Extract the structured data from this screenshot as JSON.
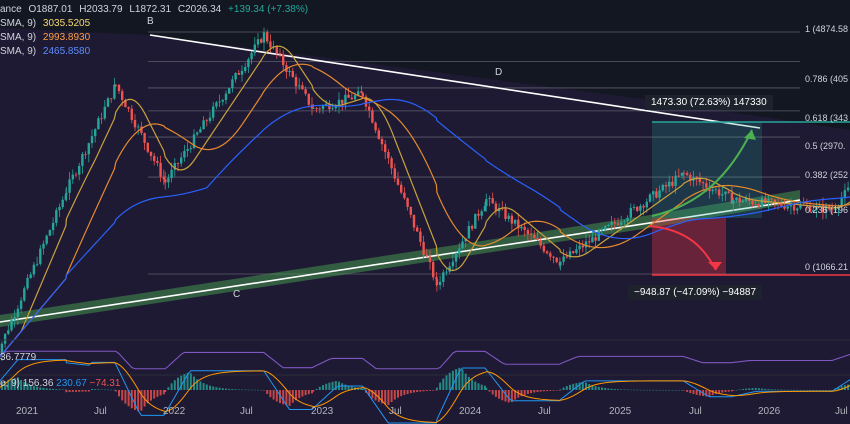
{
  "header": {
    "symbol_fragment": "ance",
    "ohlc": [
      "O1887.01",
      "H2033.79",
      "L1872.31",
      "C2026.34"
    ],
    "change": "+139.34 (+7.38%)",
    "ma1_label": "SMA, 9)",
    "ma1_value": "3035.5205",
    "ma2_label": "SMA, 9)",
    "ma2_value": "2993.8930",
    "ma3_label": "SMA, 9)",
    "ma3_value": "2465.8580"
  },
  "colors": {
    "bg": "#131722",
    "up": "#26a69a",
    "down": "#ef5350",
    "ma_fast": "#c9a23c",
    "ma_mid": "#e68a2e",
    "ma_slow": "#2962ff",
    "trend": "#ffffff",
    "support_band": "#4caf50",
    "target_up": "#4caf50",
    "target_down": "#f23645"
  },
  "fib_levels": [
    {
      "ratio": "1",
      "label": "1 (4874.58"
    },
    {
      "ratio": "0.786",
      "label": "0.786 (405"
    },
    {
      "ratio": "0.618",
      "label": "0.618 (343"
    },
    {
      "ratio": "0.5",
      "label": "0.5 (2970."
    },
    {
      "ratio": "0.382",
      "label": "0.382 (252"
    },
    {
      "ratio": "0.236",
      "label": "0.236 (196"
    },
    {
      "ratio": "0",
      "label": "0 (1066.21"
    }
  ],
  "points": {
    "b": "B",
    "c": "C",
    "d": "D"
  },
  "projection_up": "1473.30 (72.63%) 147330",
  "projection_down": "−948.87 (−47.09%) −94887",
  "rsi": {
    "value": "36.7779"
  },
  "macd": {
    "label": "e, 9)",
    "values": [
      "156.36",
      "230.67",
      "−74.31"
    ]
  },
  "x_axis": [
    "2021",
    "Jul",
    "2022",
    "Jul",
    "2023",
    "Jul",
    "2024",
    "Jul",
    "2025",
    "Jul",
    "2026",
    "Jul"
  ],
  "chart_data": {
    "type": "candlestick",
    "x_axis": [
      "2021",
      "Jul",
      "2022",
      "Jul",
      "2023",
      "Jul",
      "2024",
      "Jul",
      "2025",
      "Jul",
      "2026",
      "Jul"
    ],
    "y_scale": "log",
    "y_range": [
      1066.21,
      4874.58
    ],
    "last_close": 2026.34,
    "fib_retracement": [
      {
        "level": 1,
        "price": 4874.58
      },
      {
        "level": 0.786,
        "price": 4050
      },
      {
        "level": 0.618,
        "price": 3430
      },
      {
        "level": 0.5,
        "price": 2970
      },
      {
        "level": 0.382,
        "price": 2520
      },
      {
        "level": 0.236,
        "price": 1960
      },
      {
        "level": 0,
        "price": 1066.21
      }
    ],
    "price_path": [
      {
        "date": "2020-12",
        "price": 600
      },
      {
        "date": "2021-03",
        "price": 1800
      },
      {
        "date": "2021-05",
        "price": 3500
      },
      {
        "date": "2021-07",
        "price": 1900
      },
      {
        "date": "2021-11",
        "price": 4800
      },
      {
        "date": "2022-01",
        "price": 3000
      },
      {
        "date": "2022-03",
        "price": 3300
      },
      {
        "date": "2022-06",
        "price": 1000
      },
      {
        "date": "2022-08",
        "price": 1700
      },
      {
        "date": "2022-11",
        "price": 1150
      },
      {
        "date": "2023-04",
        "price": 2000
      },
      {
        "date": "2023-06",
        "price": 1700
      },
      {
        "date": "2023-10",
        "price": 1600
      },
      {
        "date": "2024-03",
        "price": 4000
      },
      {
        "date": "2024-05",
        "price": 2900
      },
      {
        "date": "2024-06",
        "price": 3700
      },
      {
        "date": "2024-08",
        "price": 2300
      },
      {
        "date": "2024-12",
        "price": 4000
      },
      {
        "date": "2025-02",
        "price": 2700
      },
      {
        "date": "2025-03",
        "price": 2026
      }
    ],
    "projection_up": {
      "value": 1473.3,
      "percent": 72.63
    },
    "projection_down": {
      "value": -948.87,
      "percent": -47.09
    }
  }
}
